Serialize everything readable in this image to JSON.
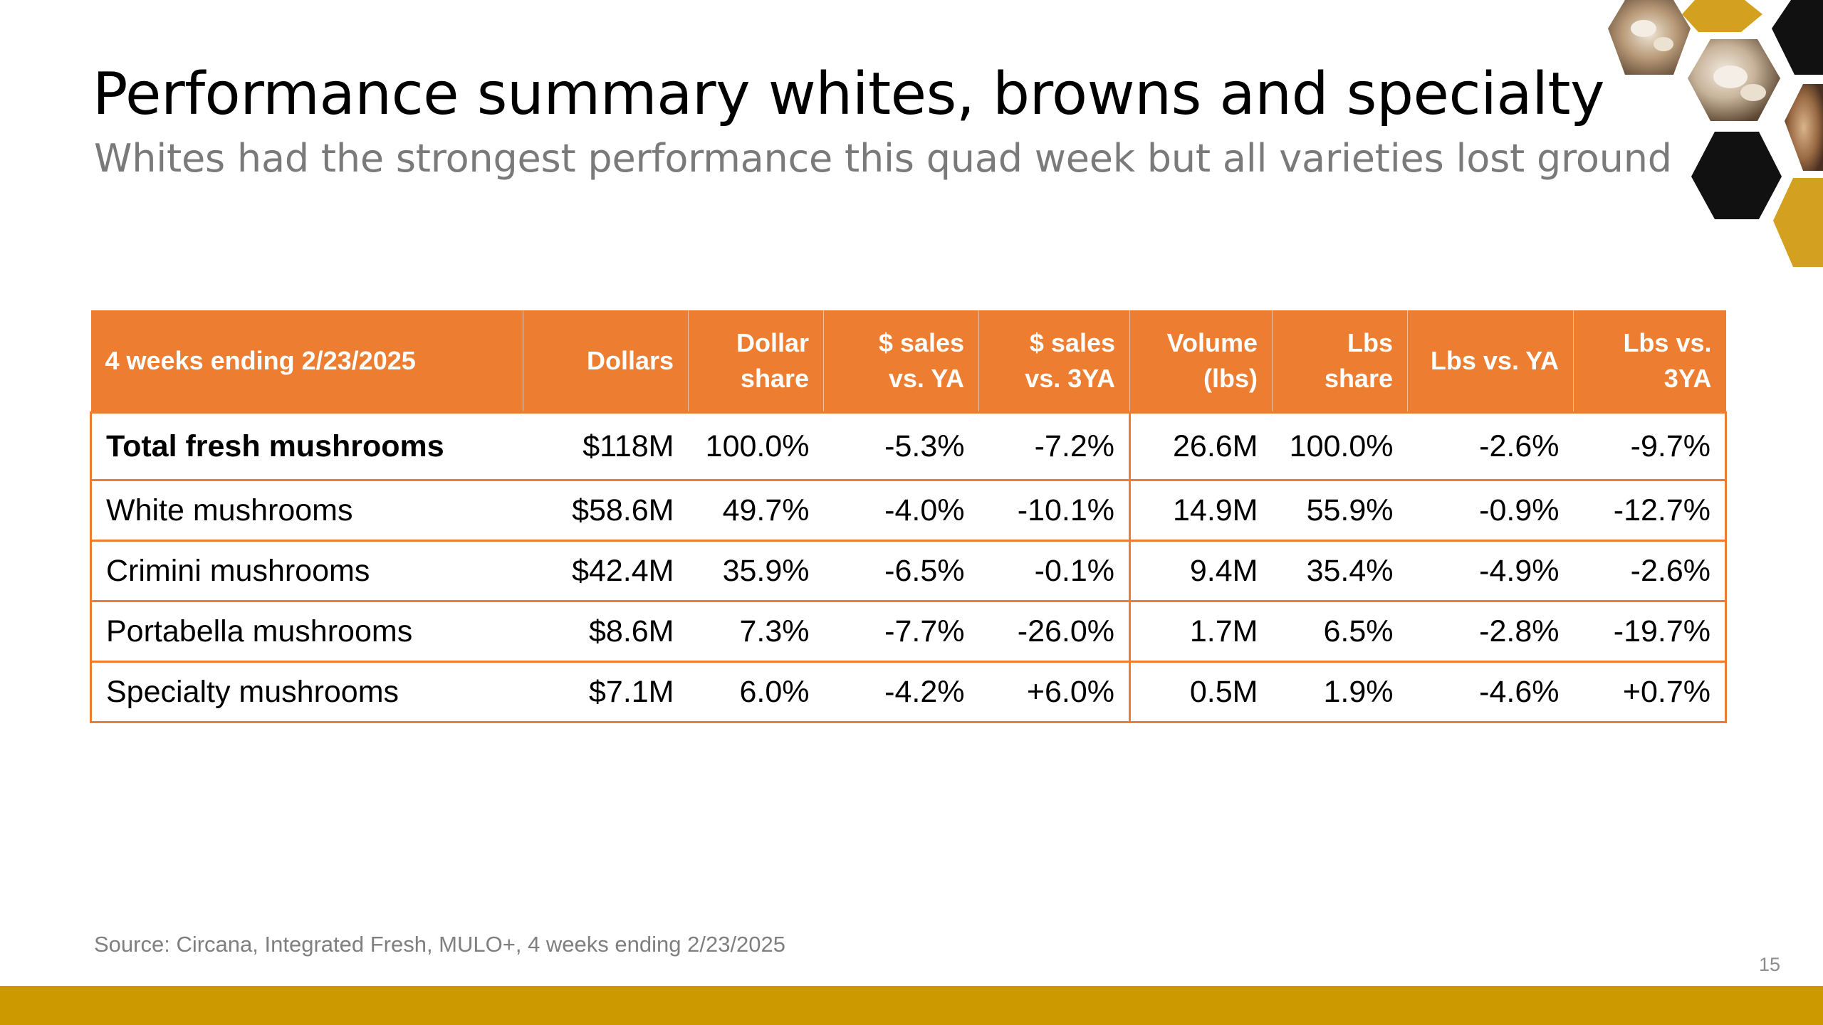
{
  "slide": {
    "title": "Performance summary whites, browns and specialty",
    "subtitle": "Whites had the strongest performance this quad week but all varieties lost ground",
    "source": "Source: Circana, Integrated Fresh, MULO+, 4 weeks ending 2/23/2025",
    "page_number": "15"
  },
  "table": {
    "headers": [
      "4 weeks ending 2/23/2025",
      "Dollars",
      "Dollar share",
      "$ sales vs. YA",
      "$ sales vs. 3YA",
      "Volume (lbs)",
      "Lbs share",
      "Lbs vs. YA",
      "Lbs vs. 3YA"
    ],
    "rows": [
      [
        "Total fresh mushrooms",
        "$118M",
        "100.0%",
        "-5.3%",
        "-7.2%",
        "26.6M",
        "100.0%",
        "-2.6%",
        "-9.7%"
      ],
      [
        "White mushrooms",
        "$58.6M",
        "49.7%",
        "-4.0%",
        "-10.1%",
        "14.9M",
        "55.9%",
        "-0.9%",
        "-12.7%"
      ],
      [
        "Crimini mushrooms",
        "$42.4M",
        "35.9%",
        "-6.5%",
        "-0.1%",
        "9.4M",
        "35.4%",
        "-4.9%",
        "-2.6%"
      ],
      [
        "Portabella mushrooms",
        "$8.6M",
        "7.3%",
        "-7.7%",
        "-26.0%",
        "1.7M",
        "6.5%",
        "-2.8%",
        "-19.7%"
      ],
      [
        "Specialty mushrooms",
        "$7.1M",
        "6.0%",
        "-4.2%",
        "+6.0%",
        "0.5M",
        "1.9%",
        "-4.6%",
        "+0.7%"
      ]
    ]
  },
  "colors": {
    "header_orange": "#ed7d31",
    "bar_gold": "#cc9a00",
    "hex_gold": "#d4a020",
    "hex_black": "#111111"
  },
  "decor": {
    "hex_images": [
      "mushroom-photo-icon",
      "mushroom-photo-icon",
      "mushroom-photo-icon",
      "mushroom-photo-icon"
    ]
  }
}
